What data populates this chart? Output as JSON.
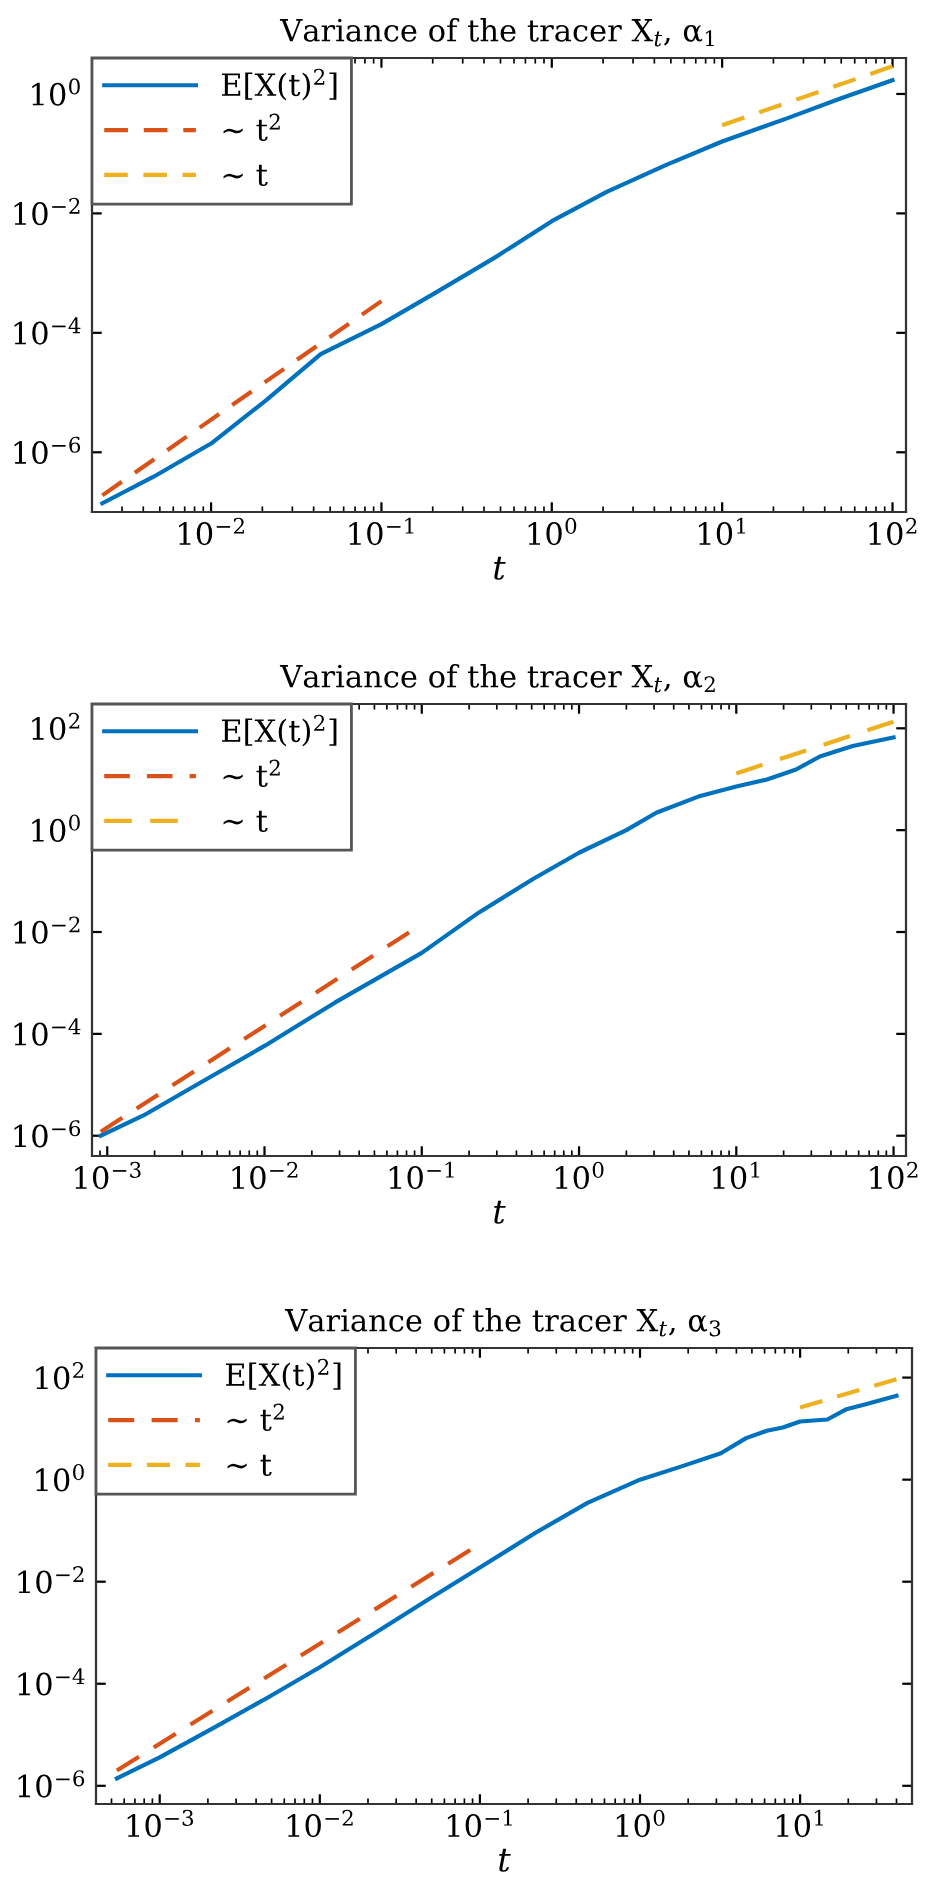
{
  "chart_data": [
    {
      "type": "line",
      "title": "Variance of the tracer X$_{t}$, α$_{1}$",
      "xlabel": "t",
      "log": "xy",
      "grid": false,
      "legend": "top left",
      "xlim": [
        0.002,
        120
      ],
      "ylim": [
        1e-07,
        4
      ],
      "xticks": [
        {
          "value": 0.01,
          "label": "10$^{−2}$"
        },
        {
          "value": 0.1,
          "label": "10$^{−1}$"
        },
        {
          "value": 1,
          "label": "10$^{0}$"
        },
        {
          "value": 10,
          "label": "10$^{1}$"
        },
        {
          "value": 100,
          "label": "10$^{2}$"
        }
      ],
      "yticks": [
        {
          "value": 1e-06,
          "label": "10$^{−6}$"
        },
        {
          "value": 0.0001,
          "label": "10$^{−4}$"
        },
        {
          "value": 0.01,
          "label": "10$^{−2}$"
        },
        {
          "value": 1,
          "label": "10$^{0}$"
        }
      ],
      "series": [
        {
          "name": "E[X(t)$^{2}$]",
          "color": "#0072bd",
          "line_style": "solid",
          "x": [
            0.0023,
            0.0046,
            0.01,
            0.021,
            0.044,
            0.1,
            0.2,
            0.46,
            1,
            2.1,
            4.7,
            10,
            24,
            49,
            100
          ],
          "values": [
            1.4e-07,
            3.9e-07,
            1.4e-06,
            7.4e-06,
            4.4e-05,
            0.00014,
            0.00044,
            0.0018,
            0.0074,
            0.023,
            0.065,
            0.16,
            0.39,
            0.83,
            1.7
          ]
        },
        {
          "name": "∼ t$^{2}$",
          "color": "#d95319",
          "line_style": "dashed",
          "x": [
            0.0023,
            0.1
          ],
          "values": [
            1.9e-07,
            0.00034
          ]
        },
        {
          "name": "∼ t",
          "color": "#edb120",
          "line_style": "dashed",
          "x": [
            10,
            100
          ],
          "values": [
            0.3,
            2.9
          ]
        }
      ]
    },
    {
      "type": "line",
      "title": "Variance of the tracer X$_{t}$, α$_{2}$",
      "xlabel": "t",
      "log": "xy",
      "grid": false,
      "legend": "top left",
      "xlim": [
        0.0008,
        120
      ],
      "ylim": [
        4e-07,
        300
      ],
      "xticks": [
        {
          "value": 0.001,
          "label": "10$^{−3}$"
        },
        {
          "value": 0.01,
          "label": "10$^{−2}$"
        },
        {
          "value": 0.1,
          "label": "10$^{−1}$"
        },
        {
          "value": 1,
          "label": "10$^{0}$"
        },
        {
          "value": 10,
          "label": "10$^{1}$"
        },
        {
          "value": 100,
          "label": "10$^{2}$"
        }
      ],
      "yticks": [
        {
          "value": 1e-06,
          "label": "10$^{−6}$"
        },
        {
          "value": 0.0001,
          "label": "10$^{−4}$"
        },
        {
          "value": 0.01,
          "label": "10$^{−2}$"
        },
        {
          "value": 1,
          "label": "10$^{0}$"
        },
        {
          "value": 100,
          "label": "10$^{2}$"
        }
      ],
      "series": [
        {
          "name": "E[X(t)$^{2}$]",
          "color": "#0072bd",
          "line_style": "solid",
          "x": [
            0.00091,
            0.0017,
            0.0039,
            0.01,
            0.028,
            0.1,
            0.23,
            0.51,
            1,
            2.0,
            3.1,
            5.9,
            10,
            15.5,
            24,
            34,
            55,
            100
          ],
          "values": [
            1e-06,
            2.5e-06,
            1.1e-05,
            5.8e-05,
            0.00041,
            0.0039,
            0.024,
            0.11,
            0.36,
            1.0,
            2.2,
            4.7,
            7.2,
            9.8,
            15.5,
            28,
            45,
            66
          ]
        },
        {
          "name": "∼ t$^{2}$",
          "color": "#d95319",
          "line_style": "dashed",
          "x": [
            0.00091,
            0.083
          ],
          "values": [
            1.2e-06,
            0.0098
          ]
        },
        {
          "name": "∼ t",
          "color": "#edb120",
          "line_style": "dashed",
          "x": [
            10,
            100
          ],
          "values": [
            13,
            135
          ]
        }
      ]
    },
    {
      "type": "line",
      "title": "Variance of the tracer X$_{t}$, α$_{3}$",
      "xlabel": "t",
      "log": "xy",
      "grid": false,
      "legend": "top left",
      "xlim": [
        0.0004,
        50
      ],
      "ylim": [
        4.4e-07,
        380
      ],
      "xticks": [
        {
          "value": 0.001,
          "label": "10$^{−3}$"
        },
        {
          "value": 0.01,
          "label": "10$^{−2}$"
        },
        {
          "value": 0.1,
          "label": "10$^{−1}$"
        },
        {
          "value": 1,
          "label": "10$^{0}$"
        },
        {
          "value": 10,
          "label": "10$^{1}$"
        }
      ],
      "yticks": [
        {
          "value": 1e-06,
          "label": "10$^{−6}$"
        },
        {
          "value": 0.0001,
          "label": "10$^{−4}$"
        },
        {
          "value": 0.01,
          "label": "10$^{−2}$"
        },
        {
          "value": 1,
          "label": "10$^{0}$"
        },
        {
          "value": 100,
          "label": "10$^{2}$"
        }
      ],
      "series": [
        {
          "name": "E[X(t)$^{2}$]",
          "color": "#0072bd",
          "line_style": "solid",
          "x": [
            0.00054,
            0.001,
            0.0022,
            0.0048,
            0.01,
            0.022,
            0.047,
            0.1,
            0.22,
            0.47,
            1,
            1.8,
            3.2,
            4.6,
            6.2,
            7.8,
            10,
            14.8,
            19.5,
            25.7,
            40
          ],
          "values": [
            1.4e-06,
            3.6e-06,
            1.4e-05,
            5.5e-05,
            0.00021,
            0.00098,
            0.0044,
            0.019,
            0.089,
            0.35,
            1.0,
            1.8,
            3.3,
            6.5,
            9.1,
            10.5,
            13.8,
            15.1,
            24,
            30,
            44
          ]
        },
        {
          "name": "∼ t$^{2}$",
          "color": "#d95319",
          "line_style": "dashed",
          "x": [
            0.00054,
            0.087
          ],
          "values": [
            2e-06,
            0.042
          ]
        },
        {
          "name": "∼ t",
          "color": "#edb120",
          "line_style": "dashed",
          "x": [
            10,
            40
          ],
          "values": [
            26,
            93
          ]
        }
      ]
    }
  ]
}
